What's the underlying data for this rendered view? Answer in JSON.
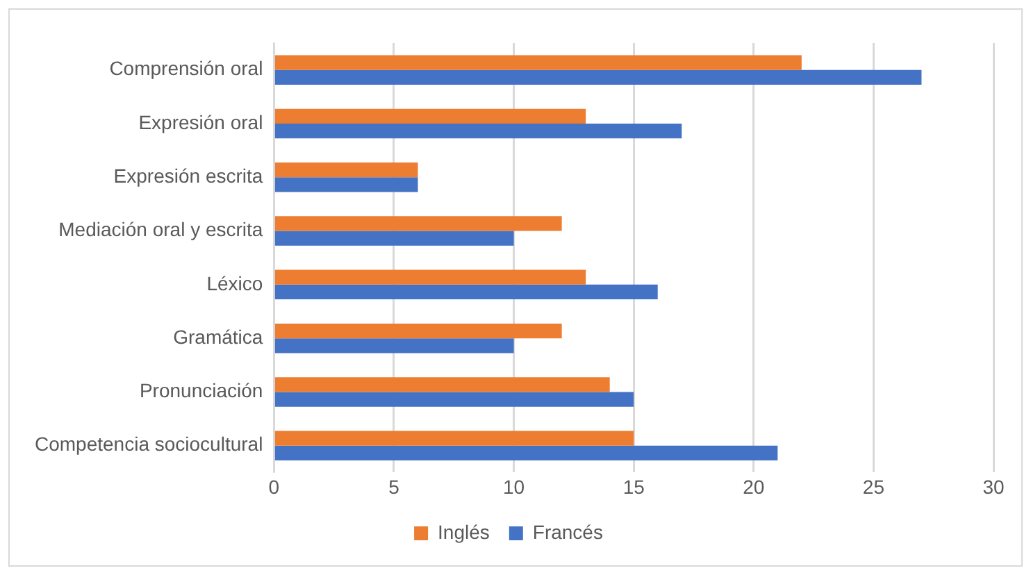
{
  "chart_data": {
    "type": "bar",
    "orientation": "horizontal",
    "categories": [
      "Comprensión oral",
      "Expresión oral",
      "Expresión escrita",
      "Mediación oral y escrita",
      "Léxico",
      "Gramática",
      "Pronunciación",
      "Competencia sociocultural"
    ],
    "series": [
      {
        "name": "Inglés",
        "color": "#ed7d31",
        "values": [
          22,
          13,
          6,
          12,
          13,
          12,
          14,
          15
        ]
      },
      {
        "name": "Francés",
        "color": "#4472c4",
        "values": [
          27,
          17,
          6,
          10,
          16,
          10,
          15,
          21
        ]
      }
    ],
    "xlim": [
      0,
      30
    ],
    "xticks": [
      0,
      5,
      10,
      15,
      20,
      25,
      30
    ],
    "grid": "x",
    "legend": "bottom"
  }
}
